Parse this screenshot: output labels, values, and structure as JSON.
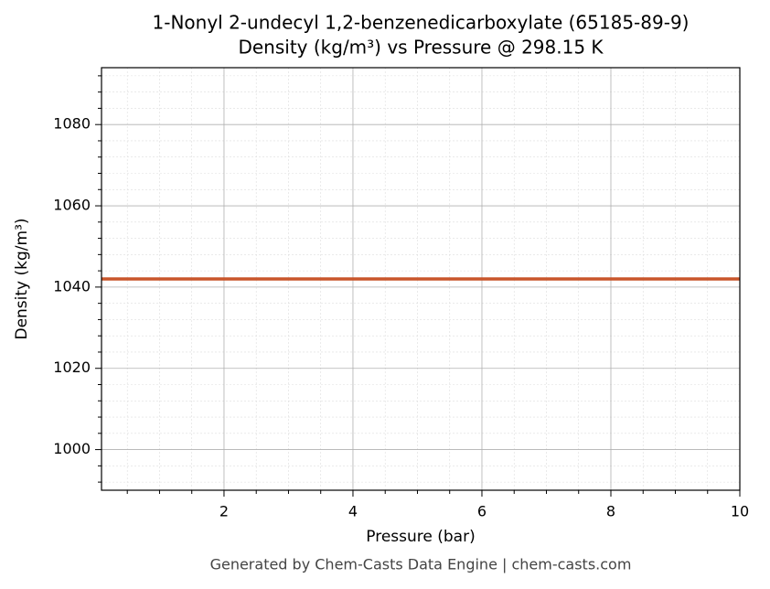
{
  "chart_data": {
    "type": "line",
    "title": "1-Nonyl 2-undecyl 1,2-benzenedicarboxylate (65185-89-9)",
    "subtitle": "Density (kg/m³) vs Pressure @ 298.15 K",
    "x_label": "Pressure (bar)",
    "y_label": "Density (kg/m³)",
    "footer": "Generated by Chem-Casts Data Engine | chem-casts.com",
    "x": [
      0.1,
      10
    ],
    "series": [
      {
        "color": "#c8552a",
        "values": [
          1042,
          1042
        ]
      }
    ],
    "xlim": [
      0.1,
      10
    ],
    "xticks": [
      2,
      4,
      6,
      8,
      10
    ],
    "xminorticks": [
      0.5,
      1,
      1.5,
      2.5,
      3,
      3.5,
      4.5,
      5,
      5.5,
      6.5,
      7,
      7.5,
      8.5,
      9,
      9.5
    ],
    "ylim": [
      990,
      1094
    ],
    "yticks": [
      1000,
      1020,
      1040,
      1060,
      1080
    ],
    "yminorticks": [
      992,
      996,
      1004,
      1008,
      1012,
      1016,
      1024,
      1028,
      1032,
      1036,
      1044,
      1048,
      1052,
      1056,
      1064,
      1068,
      1072,
      1076,
      1084,
      1088,
      1092
    ],
    "grid": true
  }
}
